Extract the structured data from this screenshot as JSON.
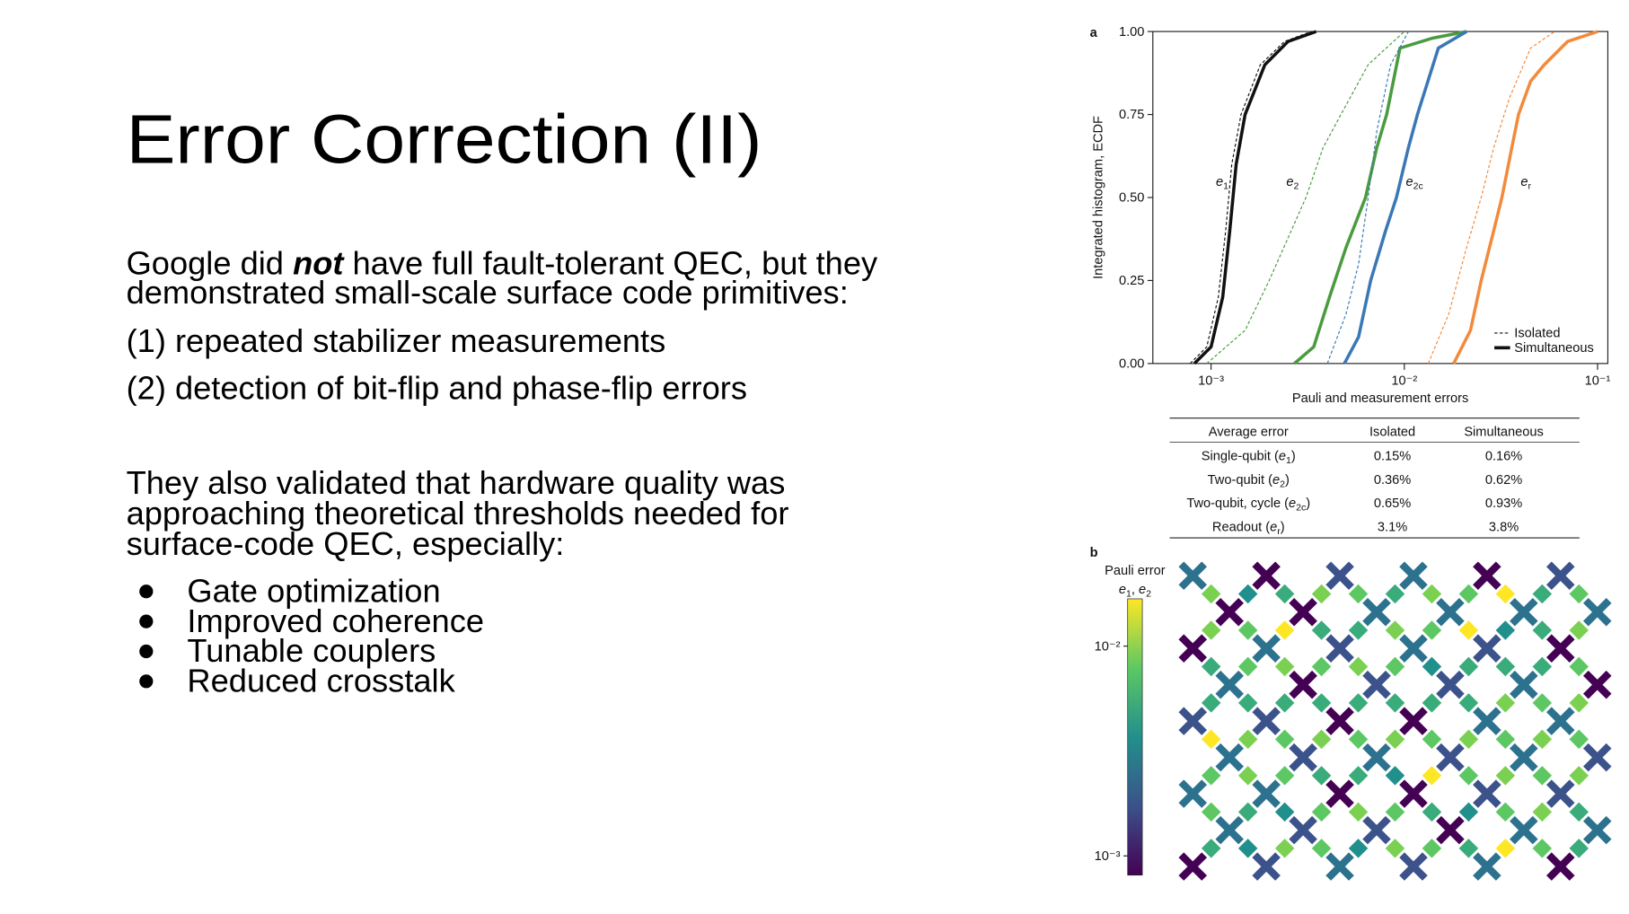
{
  "slide": {
    "title": "Error Correction (II)",
    "intro": [
      "Google did ",
      "not",
      " have full fault-tolerant QEC, but they"
    ],
    "intro_line2": "demonstrated small-scale surface code primitives:",
    "points": [
      "(1) repeated stabilizer measurements",
      "(2) detection of bit-flip and phase-flip errors"
    ],
    "validation": [
      "They also validated that hardware quality was",
      "approaching theoretical thresholds needed for",
      "surface-code QEC, especially:"
    ],
    "bullets": [
      "Gate optimization",
      "Improved coherence",
      "Tunable couplers",
      "Reduced crosstalk"
    ]
  },
  "figure": {
    "panel_a": "a",
    "panel_b": "b",
    "chart_data": {
      "type": "line",
      "x_label": "Pauli and measurement errors",
      "y_label": "Integrated histogram, ECDF",
      "xscale": "log",
      "xlim": [
        0.0005,
        0.113
      ],
      "ylim": [
        0,
        1
      ],
      "xticks": [
        {
          "value": 0.001,
          "label": "10⁻³"
        },
        {
          "value": 0.01,
          "label": "10⁻²"
        },
        {
          "value": 0.1,
          "label": "10⁻¹"
        }
      ],
      "yticks": [
        {
          "value": 0,
          "label": "0.00"
        },
        0.25,
        {
          "value": 0.5,
          "label": "0.50"
        },
        0.75,
        {
          "value": 1,
          "label": "1.00"
        }
      ],
      "legend": {
        "isolated": "Isolated",
        "simultaneous": "Simultaneous",
        "position": "lower right"
      },
      "curves": [
        {
          "label": [
            "e",
            "1"
          ],
          "color": "#111111",
          "isolated": {
            "x": [
              0.00078,
              0.00095,
              0.00109,
              0.00119,
              0.00128,
              0.00143,
              0.0018,
              0.0024,
              0.0033
            ],
            "values": [
              0,
              0.05,
              0.2,
              0.4,
              0.6,
              0.75,
              0.9,
              0.97,
              1
            ]
          },
          "simultaneous": {
            "x": [
              0.00082,
              0.001,
              0.00115,
              0.00125,
              0.00135,
              0.0015,
              0.0019,
              0.0025,
              0.0035
            ],
            "values": [
              0,
              0.05,
              0.2,
              0.4,
              0.6,
              0.75,
              0.9,
              0.97,
              1
            ]
          }
        },
        {
          "label": [
            "e",
            "2"
          ],
          "color": "#4a9b3f",
          "isolated": {
            "x": [
              0.00095,
              0.0015,
              0.002,
              0.0026,
              0.0031,
              0.0038,
              0.0047,
              0.0065,
              0.01
            ],
            "values": [
              0,
              0.1,
              0.25,
              0.4,
              0.5,
              0.65,
              0.75,
              0.9,
              1
            ]
          },
          "simultaneous": {
            "x": [
              0.0027,
              0.0034,
              0.0041,
              0.005,
              0.0063,
              0.0072,
              0.0081,
              0.0095,
              0.014,
              0.021
            ],
            "values": [
              0,
              0.05,
              0.2,
              0.35,
              0.5,
              0.65,
              0.75,
              0.95,
              0.98,
              1
            ]
          }
        },
        {
          "label": [
            "e",
            "2c"
          ],
          "color": "#3a78b5",
          "isolated": {
            "x": [
              0.004,
              0.005,
              0.0058,
              0.0065,
              0.0072,
              0.0085,
              0.0105
            ],
            "values": [
              0,
              0.15,
              0.3,
              0.5,
              0.7,
              0.9,
              1
            ]
          },
          "simultaneous": {
            "x": [
              0.0049,
              0.0058,
              0.0067,
              0.008,
              0.0091,
              0.0105,
              0.0117,
              0.015,
              0.021
            ],
            "values": [
              0,
              0.08,
              0.25,
              0.4,
              0.5,
              0.65,
              0.75,
              0.95,
              1
            ]
          }
        },
        {
          "label": [
            "e",
            "r"
          ],
          "color": "#f28a3c",
          "isolated": {
            "x": [
              0.0133,
              0.017,
              0.021,
              0.025,
              0.029,
              0.035,
              0.045,
              0.06
            ],
            "values": [
              0,
              0.15,
              0.35,
              0.5,
              0.65,
              0.8,
              0.95,
              1
            ]
          },
          "simultaneous": {
            "x": [
              0.018,
              0.022,
              0.025,
              0.029,
              0.032,
              0.036,
              0.039,
              0.045,
              0.053,
              0.07,
              0.1
            ],
            "values": [
              0,
              0.1,
              0.25,
              0.4,
              0.5,
              0.65,
              0.75,
              0.85,
              0.9,
              0.97,
              1
            ]
          }
        }
      ]
    },
    "table": {
      "header": [
        "Average error",
        "Isolated",
        "Simultaneous"
      ],
      "rows": [
        {
          "label": [
            "Single-qubit (",
            "e",
            "1",
            ")"
          ],
          "color": "#111111",
          "cells": [
            "0.15%",
            "0.16%"
          ]
        },
        {
          "label": [
            "Two-qubit (",
            "e",
            "2",
            ")"
          ],
          "color": "#4a9b3f",
          "cells": [
            "0.36%",
            "0.62%"
          ]
        },
        {
          "label": [
            "Two-qubit, cycle (",
            "e",
            "2c",
            ")"
          ],
          "color": "#3a78b5",
          "cells": [
            "0.65%",
            "0.93%"
          ]
        },
        {
          "label": [
            "Readout (",
            "e",
            "r",
            ")"
          ],
          "color": "#f28a3c",
          "cells": [
            "3.1%",
            "3.8%"
          ]
        }
      ]
    },
    "colorbar": {
      "title": "Pauli error",
      "label": [
        "e",
        "1",
        ", ",
        "e",
        "2"
      ],
      "scale": "log",
      "clim": [
        0.00081,
        0.0168
      ],
      "ticks": [
        {
          "value": 0.01,
          "label": "10⁻²"
        },
        {
          "value": 0.001,
          "label": "10⁻³"
        }
      ]
    }
  }
}
